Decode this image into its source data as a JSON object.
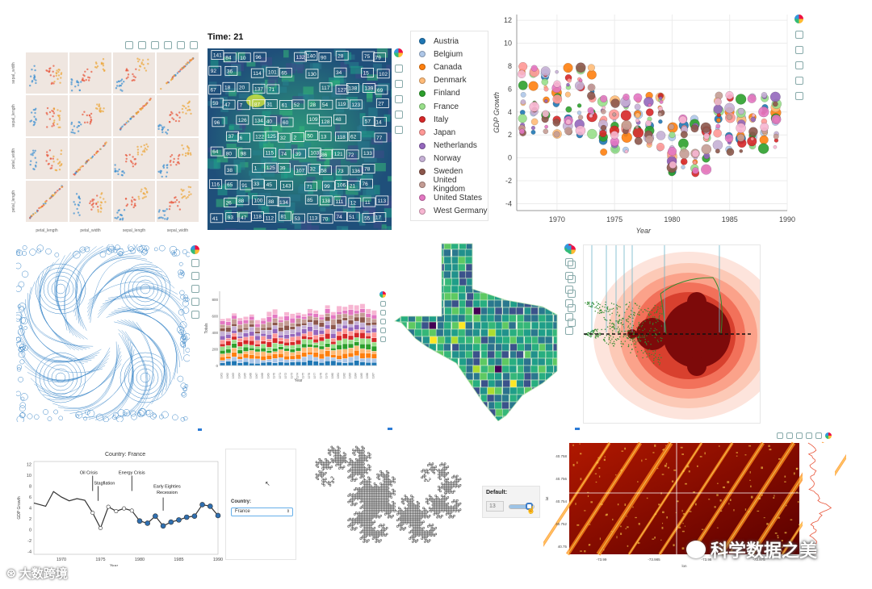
{
  "watermark_left": "大数跨境",
  "watermark_right": "科学数据之美",
  "iris": {
    "xlabels": [
      "petal_length",
      "petal_width",
      "sepal_length",
      "sepal_width"
    ],
    "ylabels": [
      "sepal_width",
      "sepal_length",
      "petal_width",
      "petal_length"
    ]
  },
  "tracking": {
    "title": "Time: 21",
    "labels": [
      "141",
      "84",
      "10",
      "96",
      "132",
      "140",
      "90",
      "28",
      "75",
      "79",
      "92",
      "36",
      "114",
      "101",
      "65",
      "130",
      "34",
      "15",
      "102",
      "67",
      "18",
      "20",
      "137",
      "71",
      "117",
      "127",
      "138",
      "139",
      "69",
      "59",
      "47",
      "7",
      "87",
      "31",
      "61",
      "52",
      "28",
      "54",
      "119",
      "123",
      "27",
      "96",
      "126",
      "134",
      "40",
      "60",
      "109",
      "128",
      "48",
      "57",
      "14",
      "37",
      "6",
      "122",
      "125",
      "32",
      "2",
      "50",
      "13",
      "118",
      "62",
      "77",
      "64",
      "80",
      "98",
      "115",
      "74",
      "39",
      "103",
      "86",
      "121",
      "72",
      "133",
      "38",
      "1",
      "125",
      "39",
      "107",
      "32",
      "58",
      "73",
      "136",
      "78",
      "116",
      "65",
      "91",
      "33",
      "45",
      "143",
      "71",
      "99",
      "106",
      "21",
      "76",
      "26",
      "88",
      "100",
      "88",
      "134",
      "85",
      "138",
      "111",
      "12",
      "11",
      "113",
      "41",
      "93",
      "47",
      "118",
      "112",
      "81",
      "53",
      "113",
      "70",
      "74",
      "51",
      "55",
      "17",
      "97",
      "43",
      "54",
      "23",
      "55",
      "135",
      "45",
      "112",
      "56",
      "131",
      "120",
      "22",
      "30",
      "137",
      "24",
      "83"
    ]
  },
  "gdp_bubble": {
    "ylabel": "GDP Growth",
    "xlabel": "Year",
    "xticks": [
      "1970",
      "1975",
      "1980",
      "1985",
      "1990"
    ],
    "yticks": [
      "12",
      "10",
      "8",
      "6",
      "4",
      "2",
      "0",
      "-2",
      "-4"
    ],
    "legend": [
      {
        "name": "Austria",
        "color": "#1f77b4"
      },
      {
        "name": "Belgium",
        "color": "#aec7e8"
      },
      {
        "name": "Canada",
        "color": "#ff7f0e"
      },
      {
        "name": "Denmark",
        "color": "#ffbb78"
      },
      {
        "name": "Finland",
        "color": "#2ca02c"
      },
      {
        "name": "France",
        "color": "#98df8a"
      },
      {
        "name": "Italy",
        "color": "#d62728"
      },
      {
        "name": "Japan",
        "color": "#ff9896"
      },
      {
        "name": "Netherlands",
        "color": "#9467bd"
      },
      {
        "name": "Norway",
        "color": "#c5b0d5"
      },
      {
        "name": "Sweden",
        "color": "#8c564b"
      },
      {
        "name": "United Kingdom",
        "color": "#c49c94"
      },
      {
        "name": "United States",
        "color": "#e377c2"
      },
      {
        "name": "West Germany",
        "color": "#f7b6d2"
      }
    ]
  },
  "stacked": {
    "ylabel": "Totals",
    "xlabel": "Year",
    "yticks": [
      "800",
      "600",
      "400",
      "200",
      "0"
    ],
    "colors": [
      "#1f77b4",
      "#aec7e8",
      "#ff7f0e",
      "#ffbb78",
      "#2ca02c",
      "#98df8a",
      "#d62728",
      "#ff9896",
      "#9467bd",
      "#c5b0d5",
      "#8c564b",
      "#c49c94",
      "#e377c2",
      "#f7b6d2"
    ]
  },
  "france": {
    "title": "Country: France",
    "ylabel": "GDP Growth",
    "xlabel": "Year",
    "annotations": [
      "Oil Crisis",
      "Stagflation",
      "Energy Crisis",
      "Early Eighties\nRecession"
    ],
    "ann_line1": "Early Eighties",
    "ann_line2": "Recession",
    "xticks": [
      "1970",
      "1975",
      "1980",
      "1985",
      "1990"
    ],
    "yticks": [
      "12",
      "10",
      "8",
      "6",
      "4",
      "2",
      "0",
      "-2",
      "-4"
    ],
    "country_label": "Country:",
    "country_value": "France"
  },
  "widget": {
    "label": "Default:",
    "value": "13"
  },
  "heatmap": {
    "yticks": [
      "40.758",
      "40.756",
      "40.754",
      "40.752",
      "40.75"
    ],
    "xticks": [
      "-73.99",
      "-73.985",
      "-73.98",
      "-73.975"
    ],
    "xlabel": "lon",
    "ylabel": "lat"
  }
}
